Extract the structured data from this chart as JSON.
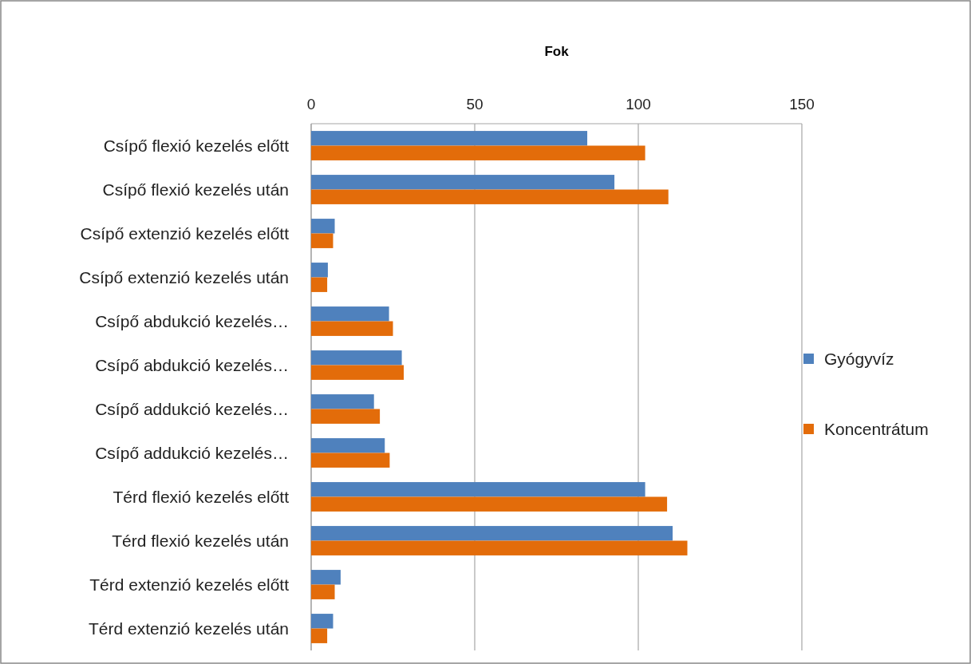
{
  "chart_data": {
    "type": "bar",
    "orientation": "horizontal",
    "title": "Fok",
    "categories": [
      "Csípő flexió kezelés előtt",
      "Csípő flexió kezelés után",
      "Csípő extenzió kezelés előtt",
      "Csípő extenzió kezelés után",
      "Csípő abdukció kezelés…",
      "Csípő abdukció kezelés…",
      "Csípő addukció kezelés…",
      "Csípő addukció kezelés…",
      "Térd flexió kezelés előtt",
      "Térd flexió kezelés után",
      "Térd extenzió kezelés előtt",
      "Térd extenzió kezelés után"
    ],
    "series": [
      {
        "name": "Gyógyvíz",
        "color": "#4f81bd",
        "values": [
          84.4,
          92.7,
          7.2,
          5.1,
          23.8,
          27.7,
          19.2,
          22.5,
          102.1,
          110.5,
          9.0,
          6.7
        ]
      },
      {
        "name": "Koncentrátum",
        "color": "#e36c0a",
        "values": [
          102.1,
          109.2,
          6.7,
          4.9,
          25.0,
          28.3,
          21.0,
          24.0,
          108.8,
          115.0,
          7.2,
          4.9
        ]
      }
    ],
    "xlim": [
      0,
      150
    ],
    "xticks": [
      0,
      50,
      100,
      150
    ],
    "grid": "x",
    "legend": "right"
  }
}
